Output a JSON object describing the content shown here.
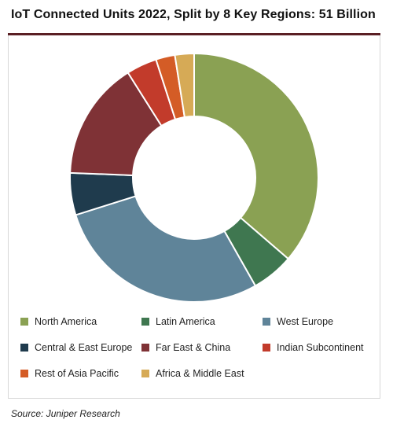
{
  "chart_data": {
    "type": "pie",
    "subtype": "donut",
    "title": "IoT Connected Units 2022, Split by 8 Key Regions: 51 Billion",
    "source": "Source: Juniper Research",
    "legend_position": "bottom",
    "series": [
      {
        "name": "North America",
        "value": 36.5,
        "color": "#8aa153"
      },
      {
        "name": "Latin America",
        "value": 5.5,
        "color": "#3f7750"
      },
      {
        "name": "West Europe",
        "value": 28.5,
        "color": "#5f8499"
      },
      {
        "name": "Central & East Europe",
        "value": 5.5,
        "color": "#1f3b4d"
      },
      {
        "name": "Far East & China",
        "value": 15.5,
        "color": "#7f3236"
      },
      {
        "name": "Indian Subcontinent",
        "value": 4.0,
        "color": "#c23b2b"
      },
      {
        "name": "Rest of Asia Pacific",
        "value": 2.5,
        "color": "#d45c26"
      },
      {
        "name": "Africa & Middle East",
        "value": 2.5,
        "color": "#d6aa56"
      }
    ]
  }
}
